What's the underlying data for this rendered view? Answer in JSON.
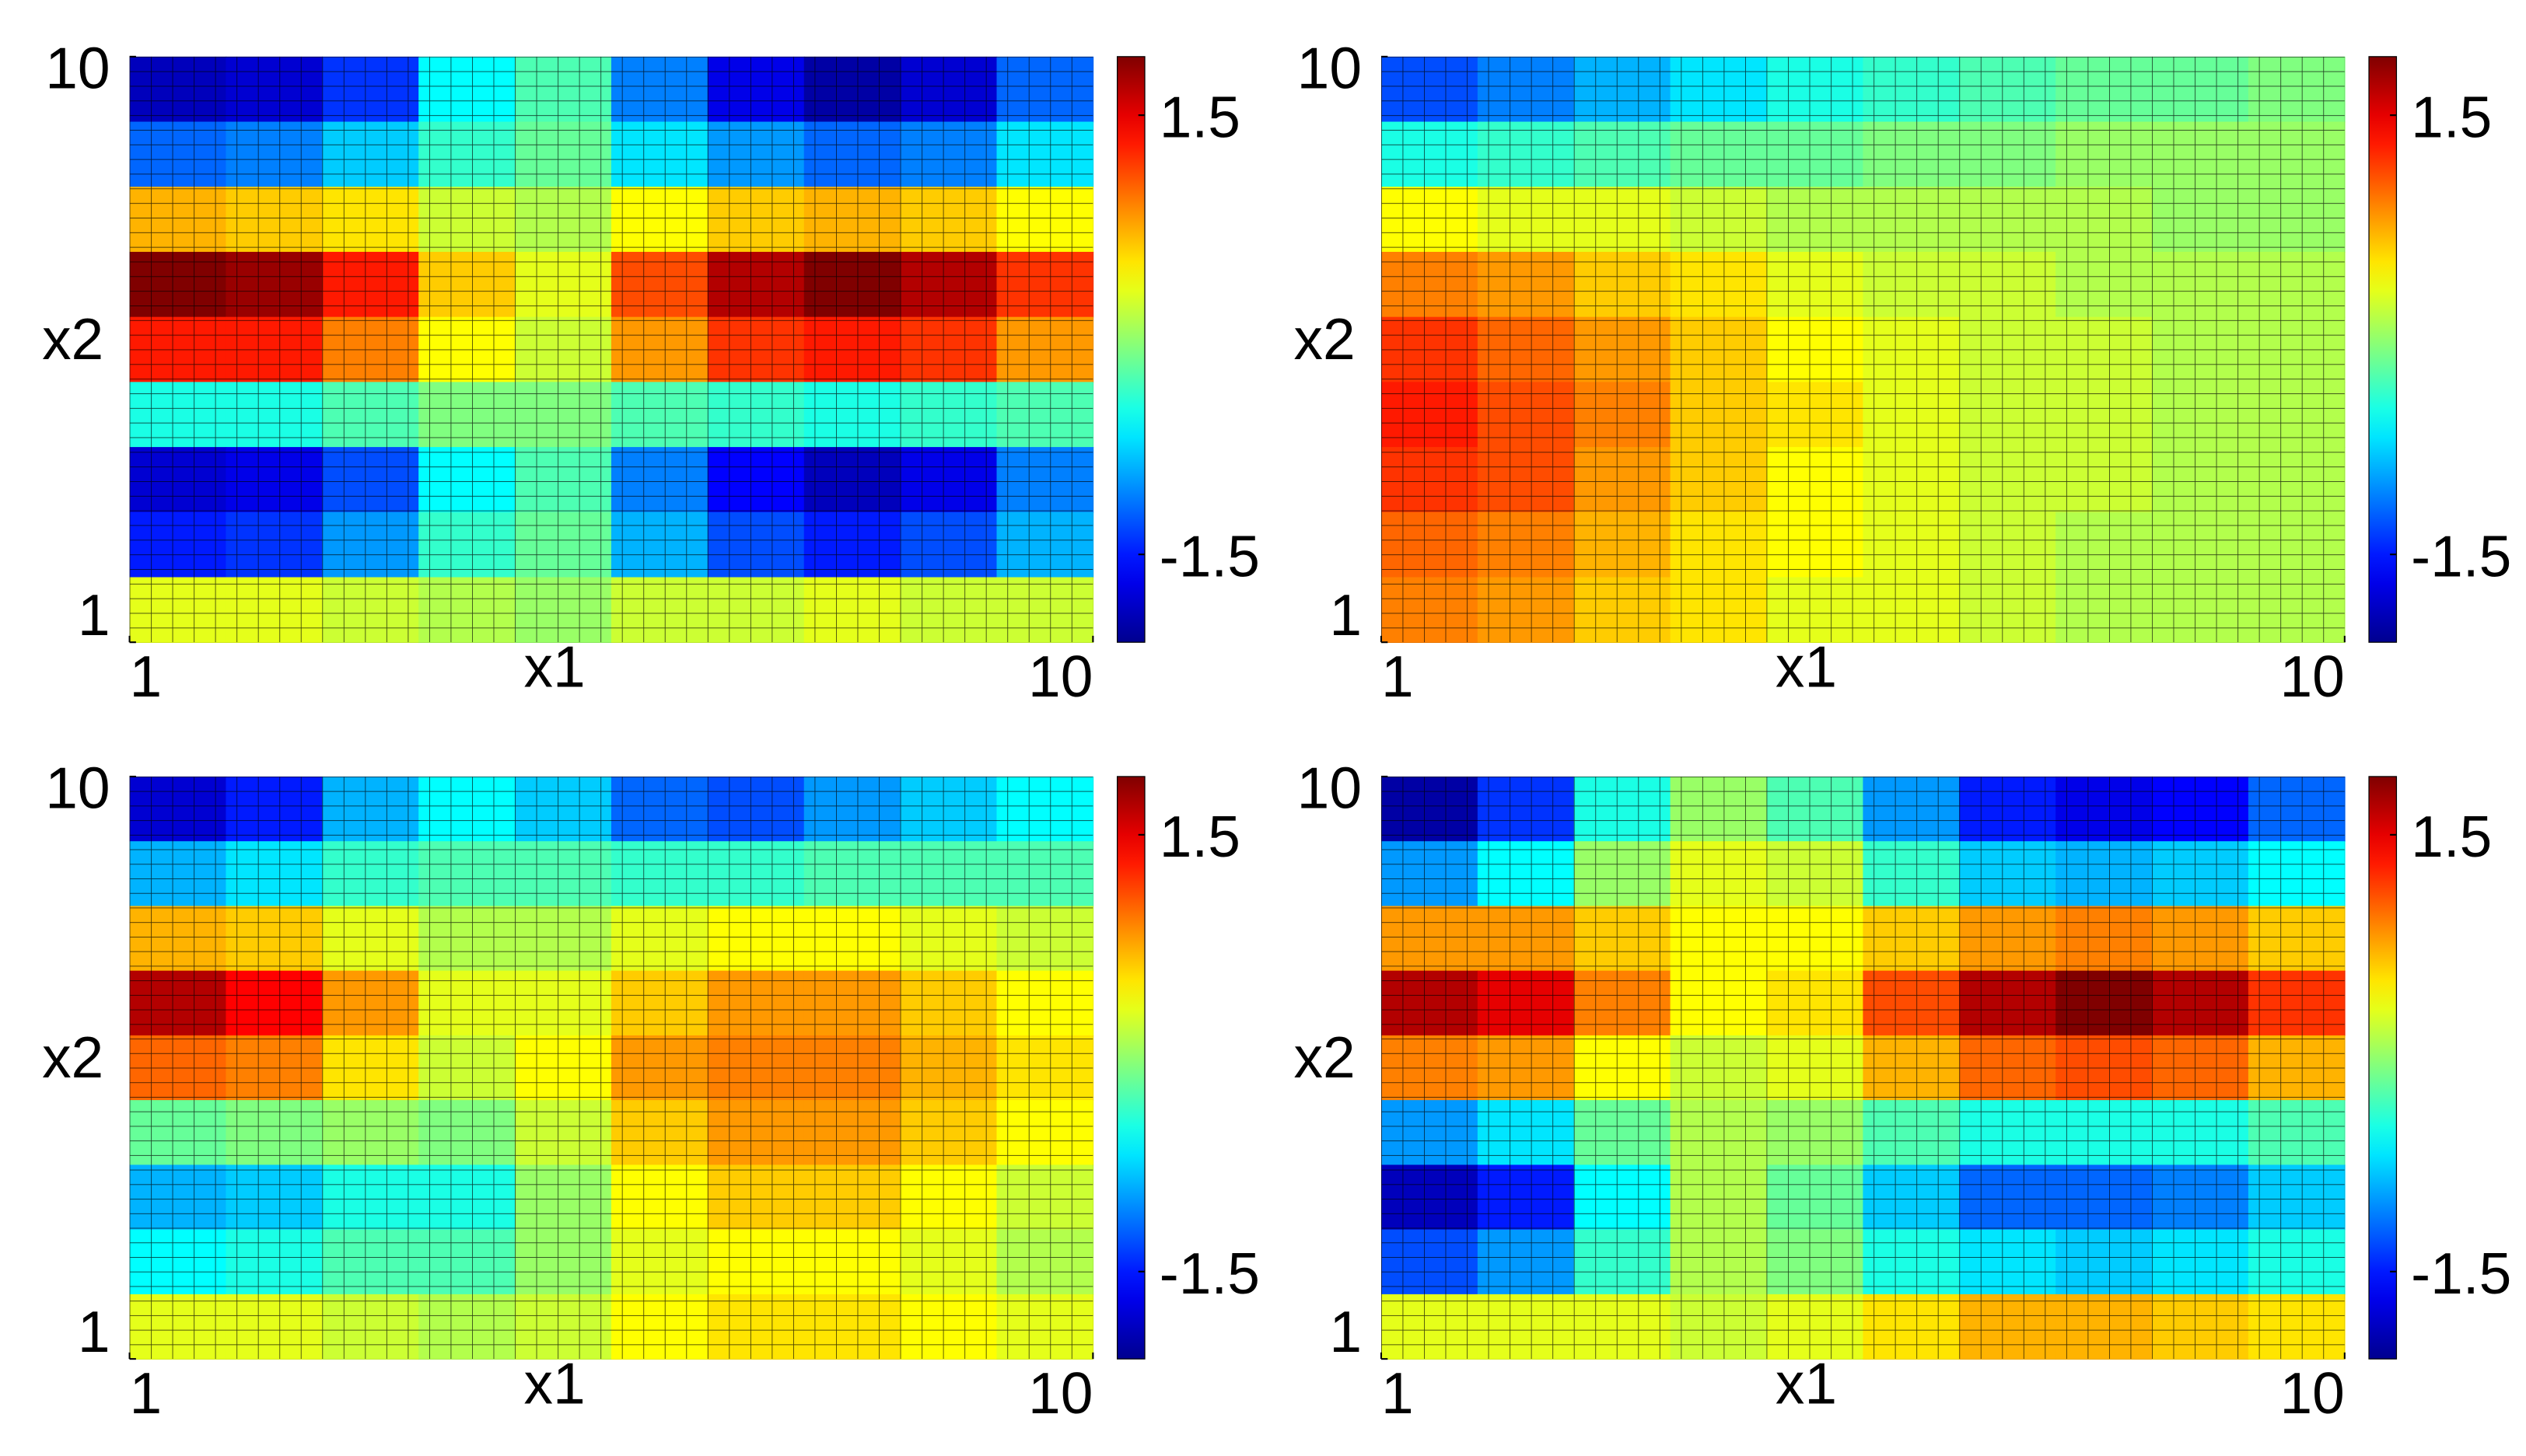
{
  "chart_data": [
    {
      "type": "heatmap",
      "colormap": "jet",
      "xlabel": "x1",
      "ylabel": "x2",
      "xlim": [
        1,
        10
      ],
      "ylim": [
        1,
        10
      ],
      "xticks": [
        1,
        10
      ],
      "yticks": [
        1,
        10
      ],
      "clim": [
        -2.1,
        1.9
      ],
      "cticks": [
        -1.5,
        1.5
      ],
      "x": [
        1.45,
        2.35,
        3.25,
        4.15,
        5.05,
        5.95,
        6.85,
        7.75,
        8.65,
        9.55
      ],
      "y": [
        9.5,
        8.5,
        7.5,
        6.5,
        5.5,
        4.5,
        3.5,
        2.5,
        1.5
      ],
      "values": [
        [
          -1.9,
          -1.8,
          -1.4,
          -0.6,
          -0.3,
          -1.1,
          -1.7,
          -2.0,
          -1.8,
          -1.2
        ],
        [
          -1.2,
          -1.1,
          -0.8,
          -0.4,
          -0.2,
          -0.7,
          -1.0,
          -1.2,
          -1.1,
          -0.7
        ],
        [
          0.7,
          0.6,
          0.5,
          0.2,
          0.1,
          0.4,
          0.6,
          0.7,
          0.6,
          0.4
        ],
        [
          1.9,
          1.8,
          1.3,
          0.6,
          0.3,
          1.1,
          1.7,
          1.9,
          1.7,
          1.2
        ],
        [
          1.3,
          1.3,
          0.9,
          0.4,
          0.2,
          0.8,
          1.2,
          1.3,
          1.2,
          0.8
        ],
        [
          -0.5,
          -0.5,
          -0.3,
          -0.1,
          -0.1,
          -0.3,
          -0.4,
          -0.5,
          -0.4,
          -0.3
        ],
        [
          -1.8,
          -1.7,
          -1.3,
          -0.6,
          -0.3,
          -1.1,
          -1.6,
          -1.9,
          -1.7,
          -1.1
        ],
        [
          -1.5,
          -1.4,
          -1.0,
          -0.4,
          -0.2,
          -0.9,
          -1.3,
          -1.5,
          -1.3,
          -0.9
        ],
        [
          0.3,
          0.3,
          0.2,
          0.1,
          0,
          0.2,
          0.2,
          0.3,
          0.2,
          0.2
        ]
      ]
    },
    {
      "type": "heatmap",
      "colormap": "jet",
      "xlabel": "x1",
      "ylabel": "x2",
      "xlim": [
        1,
        10
      ],
      "ylim": [
        1,
        10
      ],
      "xticks": [
        1,
        10
      ],
      "yticks": [
        1,
        10
      ],
      "clim": [
        -2.1,
        1.9
      ],
      "cticks": [
        -1.5,
        1.5
      ],
      "x": [
        1.45,
        2.35,
        3.25,
        4.15,
        5.05,
        5.95,
        6.85,
        7.75,
        8.65,
        9.55
      ],
      "y": [
        9.5,
        8.5,
        7.5,
        6.5,
        5.5,
        4.5,
        3.5,
        2.5,
        1.5
      ],
      "values": [
        [
          -1.3,
          -1.1,
          -0.9,
          -0.7,
          -0.5,
          -0.4,
          -0.3,
          -0.2,
          -0.2,
          -0.1
        ],
        [
          -0.5,
          -0.4,
          -0.3,
          -0.2,
          -0.2,
          -0.1,
          -0.1,
          0,
          0,
          0
        ],
        [
          0.4,
          0.3,
          0.3,
          0.2,
          0.1,
          0.1,
          0.1,
          0.1,
          0,
          0
        ],
        [
          0.9,
          0.8,
          0.6,
          0.5,
          0.3,
          0.2,
          0.2,
          0.1,
          0.1,
          0.1
        ],
        [
          1.2,
          1.0,
          0.8,
          0.6,
          0.4,
          0.3,
          0.2,
          0.2,
          0.1,
          0.1
        ],
        [
          1.3,
          1.1,
          0.9,
          0.6,
          0.5,
          0.3,
          0.2,
          0.2,
          0.1,
          0.1
        ],
        [
          1.2,
          1.1,
          0.8,
          0.6,
          0.4,
          0.3,
          0.2,
          0.2,
          0.1,
          0.1
        ],
        [
          1.0,
          0.9,
          0.7,
          0.5,
          0.4,
          0.3,
          0.2,
          0.1,
          0.1,
          0.1
        ],
        [
          0.9,
          0.8,
          0.6,
          0.5,
          0.3,
          0.3,
          0.2,
          0.1,
          0.1,
          0.1
        ]
      ]
    },
    {
      "type": "heatmap",
      "colormap": "jet",
      "xlabel": "x1",
      "ylabel": "x2",
      "xlim": [
        1,
        10
      ],
      "ylim": [
        1,
        10
      ],
      "xticks": [
        1,
        10
      ],
      "yticks": [
        1,
        10
      ],
      "clim": [
        -2.1,
        1.9
      ],
      "cticks": [
        -1.5,
        1.5
      ],
      "x": [
        1.45,
        2.35,
        3.25,
        4.15,
        5.05,
        5.95,
        6.85,
        7.75,
        8.65,
        9.55
      ],
      "y": [
        9.5,
        8.5,
        7.5,
        6.5,
        5.5,
        4.5,
        3.5,
        2.5,
        1.5
      ],
      "values": [
        [
          -1.8,
          -1.5,
          -0.9,
          -0.6,
          -0.8,
          -1.2,
          -1.3,
          -1.0,
          -0.8,
          -0.6
        ],
        [
          -0.9,
          -0.7,
          -0.4,
          -0.3,
          -0.3,
          -0.4,
          -0.4,
          -0.3,
          -0.3,
          -0.3
        ],
        [
          0.7,
          0.6,
          0.3,
          0.1,
          0.1,
          0.3,
          0.4,
          0.4,
          0.3,
          0.2
        ],
        [
          1.7,
          1.4,
          0.8,
          0.3,
          0.3,
          0.6,
          0.8,
          0.8,
          0.6,
          0.4
        ],
        [
          1.0,
          0.9,
          0.5,
          0.2,
          0.4,
          0.8,
          0.9,
          0.9,
          0.7,
          0.5
        ],
        [
          -0.2,
          -0.1,
          0,
          -0.1,
          0.2,
          0.6,
          0.8,
          0.8,
          0.6,
          0.4
        ],
        [
          -0.9,
          -0.8,
          -0.5,
          -0.5,
          0.0,
          0.4,
          0.6,
          0.6,
          0.4,
          0.2
        ],
        [
          -0.6,
          -0.5,
          -0.3,
          -0.3,
          0.0,
          0.3,
          0.4,
          0.4,
          0.3,
          0.1
        ],
        [
          0.3,
          0.3,
          0.2,
          0.1,
          0.2,
          0.4,
          0.5,
          0.5,
          0.4,
          0.3
        ]
      ]
    },
    {
      "type": "heatmap",
      "colormap": "jet",
      "xlabel": "x1",
      "ylabel": "x2",
      "xlim": [
        1,
        10
      ],
      "ylim": [
        1,
        10
      ],
      "xticks": [
        1,
        10
      ],
      "yticks": [
        1,
        10
      ],
      "clim": [
        -2.1,
        1.9
      ],
      "cticks": [
        -1.5,
        1.5
      ],
      "x": [
        1.45,
        2.35,
        3.25,
        4.15,
        5.05,
        5.95,
        6.85,
        7.75,
        8.65,
        9.55
      ],
      "y": [
        9.5,
        8.5,
        7.5,
        6.5,
        5.5,
        4.5,
        3.5,
        2.5,
        1.5
      ],
      "values": [
        [
          -2.0,
          -1.4,
          -0.5,
          0.0,
          -0.3,
          -1.0,
          -1.5,
          -1.7,
          -1.6,
          -1.2
        ],
        [
          -1.0,
          -0.6,
          0.0,
          0.3,
          0.2,
          -0.4,
          -0.8,
          -0.9,
          -0.8,
          -0.6
        ],
        [
          0.8,
          0.8,
          0.6,
          0.4,
          0.4,
          0.6,
          0.8,
          0.9,
          0.8,
          0.6
        ],
        [
          1.7,
          1.5,
          0.9,
          0.4,
          0.5,
          1.1,
          1.7,
          1.9,
          1.7,
          1.2
        ],
        [
          0.9,
          0.8,
          0.4,
          0.2,
          0.3,
          0.7,
          1.0,
          1.1,
          1.0,
          0.7
        ],
        [
          -1.0,
          -0.7,
          -0.2,
          0.1,
          0.0,
          -0.3,
          -0.5,
          -0.5,
          -0.5,
          -0.3
        ],
        [
          -1.9,
          -1.5,
          -0.6,
          0.1,
          -0.2,
          -0.8,
          -1.2,
          -1.2,
          -1.1,
          -0.8
        ],
        [
          -1.3,
          -1.0,
          -0.4,
          0.1,
          -0.1,
          -0.5,
          -0.7,
          -0.8,
          -0.7,
          -0.5
        ],
        [
          0.3,
          0.3,
          0.3,
          0.2,
          0.3,
          0.5,
          0.7,
          0.7,
          0.6,
          0.5
        ]
      ]
    }
  ]
}
